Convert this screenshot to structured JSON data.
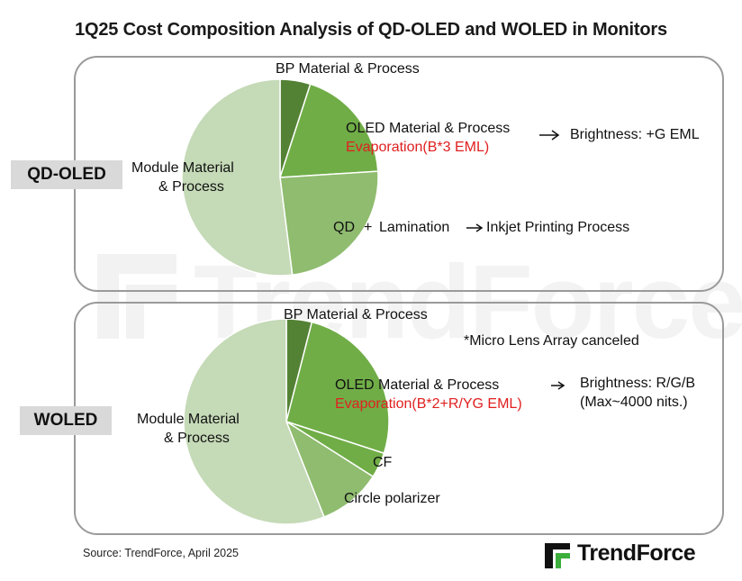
{
  "title": "1Q25 Cost Composition Analysis of QD-OLED and WOLED in Monitors",
  "watermark": "TrendForce",
  "colors": {
    "dark_green": "#548235",
    "mid_green": "#70ad47",
    "light_green": "#8fbc6f",
    "pale_green": "#c5dab7",
    "annotation_red": "#e02020"
  },
  "chart_data": [
    {
      "type": "pie",
      "name": "QD-OLED",
      "labels": [
        "BP Material & Process",
        "OLED Material & Process",
        "QD + Lamination",
        "Module Material & Process"
      ],
      "values": [
        5,
        19,
        24,
        52
      ],
      "unit": "% share (estimated)",
      "annotations": {
        "oled_process": "Evaporation(B*3 EML)",
        "oled_arrow_text": "Brightness: +G EML",
        "qd_arrow_text": "Inkjet Printing Process"
      }
    },
    {
      "type": "pie",
      "name": "WOLED",
      "labels": [
        "BP Material & Process",
        "OLED Material & Process",
        "CF",
        "Circle polarizer",
        "Module Material & Process"
      ],
      "values": [
        4,
        26,
        4,
        10,
        56
      ],
      "unit": "% share (estimated)",
      "annotations": {
        "note": "*Micro Lens Array canceled",
        "oled_process": "Evaporation(B*2+R/YG EML)",
        "brightness_line1": "Brightness: R/G/B",
        "brightness_line2": "(Max~4000 nits.)"
      }
    }
  ],
  "labels": {
    "qd_bp": "BP Material & Process",
    "qd_oled": "OLED Material & Process",
    "qd_qd": "QD",
    "qd_plus": "+",
    "qd_lamination": "Lamination",
    "qd_module_line1": "Module Material",
    "qd_module_line2": "& Process",
    "wo_bp": "BP Material & Process",
    "wo_oled": "OLED Material & Process",
    "wo_cf": "CF",
    "wo_cp": "Circle polarizer",
    "wo_module_line1": "Module Material",
    "wo_module_line2": "& Process"
  },
  "tags": {
    "qd": "QD-OLED",
    "wo": "WOLED"
  },
  "footer": {
    "source": "Source: TrendForce, April 2025",
    "brand": "TrendForce"
  }
}
